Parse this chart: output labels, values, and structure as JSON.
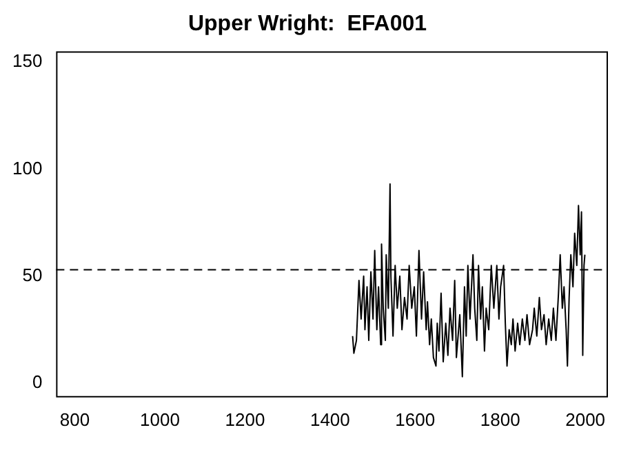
{
  "chart_data": {
    "type": "line",
    "title": "Upper Wright:  EFA001",
    "xlim": [
      756,
      2050
    ],
    "xticks": [
      800,
      1000,
      1200,
      1400,
      1600,
      1800,
      2000
    ],
    "ylim": [
      -6,
      155
    ],
    "yticks": [
      0,
      50,
      100,
      150
    ],
    "grid": false,
    "legend": false,
    "marker": "none",
    "line_style": "solid",
    "ref_lines": [
      {
        "axis": "y",
        "value": 53,
        "line_style": "dashed",
        "color": "#000000"
      }
    ],
    "series": [
      {
        "color": "#000000",
        "x": [
          1453,
          1456,
          1462,
          1468,
          1473,
          1479,
          1482,
          1487,
          1491,
          1496,
          1501,
          1505,
          1510,
          1514,
          1519,
          1521,
          1525,
          1530,
          1532,
          1537,
          1541,
          1543,
          1548,
          1553,
          1558,
          1564,
          1569,
          1575,
          1581,
          1586,
          1592,
          1598,
          1603,
          1609,
          1615,
          1620,
          1626,
          1629,
          1634,
          1638,
          1643,
          1649,
          1652,
          1656,
          1661,
          1666,
          1672,
          1677,
          1682,
          1688,
          1693,
          1697,
          1705,
          1711,
          1716,
          1720,
          1724,
          1729,
          1736,
          1740,
          1745,
          1749,
          1754,
          1758,
          1763,
          1767,
          1773,
          1779,
          1785,
          1792,
          1797,
          1801,
          1808,
          1812,
          1816,
          1821,
          1826,
          1830,
          1835,
          1841,
          1846,
          1852,
          1858,
          1863,
          1869,
          1876,
          1880,
          1886,
          1892,
          1897,
          1903,
          1908,
          1914,
          1920,
          1925,
          1931,
          1937,
          1941,
          1946,
          1950,
          1955,
          1958,
          1962,
          1966,
          1971,
          1975,
          1980,
          1984,
          1988,
          1991,
          1994,
          1997,
          1999
        ],
        "values": [
          22,
          14,
          20,
          48,
          30,
          50,
          25,
          45,
          20,
          52,
          30,
          62,
          25,
          45,
          18,
          65,
          35,
          20,
          60,
          35,
          93,
          50,
          22,
          55,
          35,
          50,
          25,
          40,
          30,
          55,
          35,
          45,
          22,
          62,
          30,
          52,
          25,
          38,
          18,
          30,
          12,
          8,
          28,
          15,
          42,
          10,
          28,
          13,
          35,
          20,
          48,
          12,
          32,
          3,
          45,
          22,
          55,
          30,
          60,
          35,
          20,
          55,
          30,
          45,
          15,
          35,
          25,
          55,
          35,
          55,
          30,
          45,
          55,
          28,
          8,
          25,
          18,
          30,
          15,
          28,
          18,
          30,
          20,
          32,
          18,
          25,
          35,
          22,
          40,
          25,
          32,
          18,
          30,
          20,
          35,
          20,
          42,
          60,
          35,
          45,
          25,
          8,
          40,
          60,
          45,
          70,
          55,
          83,
          60,
          80,
          13,
          55,
          60
        ]
      }
    ]
  }
}
